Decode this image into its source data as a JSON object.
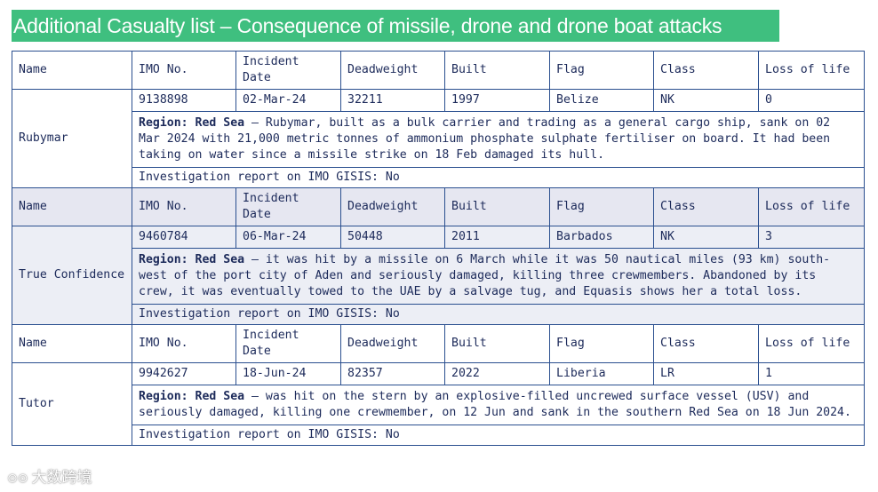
{
  "title": "Additional Casualty list – Consequence of missile, drone and drone boat attacks",
  "headers": {
    "name": "Name",
    "imo": "IMO No.",
    "incident_date": "Incident Date",
    "deadweight": "Deadweight",
    "built": "Built",
    "flag": "Flag",
    "class": "Class",
    "loss_of_life": "Loss of life"
  },
  "casualties": [
    {
      "name": "Rubymar",
      "imo": "9138898",
      "incident_date": "02-Mar-24",
      "deadweight": "32211",
      "built": "1997",
      "flag": "Belize",
      "class": "NK",
      "loss_of_life": "0",
      "region_label": "Region: Red Sea",
      "description": " – Rubymar, built as a bulk carrier and trading as a general cargo ship, sank on 02 Mar 2024 with 21,000 metric tonnes of ammonium phosphate sulphate fertiliser on board. It had been taking on water since a missile strike on 18 Feb damaged its hull.",
      "investigation": "Investigation report on IMO GISIS: No"
    },
    {
      "name": "True Confidence",
      "imo": "9460784",
      "incident_date": "06-Mar-24",
      "deadweight": "50448",
      "built": "2011",
      "flag": "Barbados",
      "class": "NK",
      "loss_of_life": "3",
      "region_label": "Region: Red Sea",
      "description": " – it was hit by a missile on 6 March while it was 50 nautical miles (93 km) south-west of the port city of Aden and seriously damaged, killing three crewmembers. Abandoned by its crew, it was eventually towed to the UAE by a salvage tug, and Equasis shows her a total loss.",
      "investigation": "Investigation report on IMO GISIS:  No"
    },
    {
      "name": "Tutor",
      "imo": "9942627",
      "incident_date": "18-Jun-24",
      "deadweight": "82357",
      "built": "2022",
      "flag": "Liberia",
      "class": "LR",
      "loss_of_life": "1",
      "region_label": "Region: Red Sea",
      "description": " – was hit on the stern by an explosive-filled uncrewed surface vessel (USV) and seriously damaged, killing one crewmember, on 12 Jun and sank in the southern Red Sea on 18 Jun 2024.",
      "investigation": "Investigation report on IMO GISIS:  No"
    }
  ],
  "watermark": {
    "logo": "⊙⊙",
    "text": "大数跨境"
  }
}
